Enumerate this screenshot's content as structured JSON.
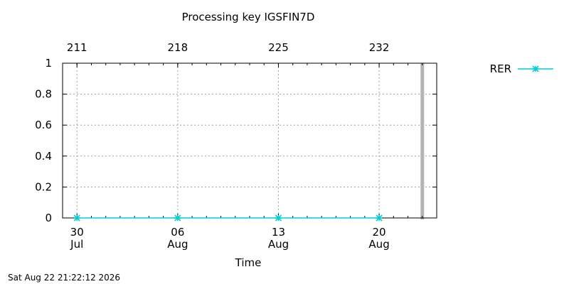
{
  "chart_data": {
    "type": "line",
    "title": "Processing key IGSFIN7D",
    "xlabel": "Time",
    "ylabel": "",
    "ylim": [
      0,
      1
    ],
    "yticks": [
      "0",
      "0.2",
      "0.4",
      "0.6",
      "0.8",
      "1"
    ],
    "xlim": [
      "2026-07-29",
      "2026-08-24"
    ],
    "x_ticks": [
      {
        "date": "2026-07-30",
        "day": "30",
        "month": "Jul"
      },
      {
        "date": "2026-08-06",
        "day": "06",
        "month": "Aug"
      },
      {
        "date": "2026-08-13",
        "day": "13",
        "month": "Aug"
      },
      {
        "date": "2026-08-20",
        "day": "20",
        "month": "Aug"
      }
    ],
    "x2_ticks": [
      "211",
      "218",
      "225",
      "232"
    ],
    "grid": true,
    "legend_position": "top-right",
    "series": [
      {
        "name": "RER",
        "color": "#00cfd8",
        "marker": "star",
        "x": [
          "2026-07-30",
          "2026-08-06",
          "2026-08-13",
          "2026-08-20"
        ],
        "values": [
          0,
          0,
          0,
          0
        ]
      }
    ],
    "current_time_marker": {
      "date": "2026-08-23",
      "color": "#b4b4b4"
    },
    "footer": "Sat Aug 22 21:22:12 2026"
  }
}
